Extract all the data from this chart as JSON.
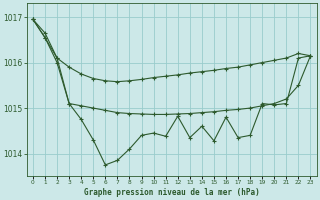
{
  "background_color": "#cce8e8",
  "plot_bg_color": "#cce8e8",
  "grid_color": "#99cccc",
  "line_color": "#2d5a2d",
  "xlabel": "Graphe pression niveau de la mer (hPa)",
  "ylim": [
    1013.5,
    1017.3
  ],
  "xlim": [
    -0.5,
    23.5
  ],
  "yticks": [
    1014,
    1015,
    1016,
    1017
  ],
  "xticks": [
    0,
    1,
    2,
    3,
    4,
    5,
    6,
    7,
    8,
    9,
    10,
    11,
    12,
    13,
    14,
    15,
    16,
    17,
    18,
    19,
    20,
    21,
    22,
    23
  ],
  "line_upper_x": [
    0,
    1,
    2,
    3,
    4,
    5,
    6,
    7,
    8,
    9,
    10,
    11,
    12,
    13,
    14,
    15,
    16,
    17,
    18,
    19,
    20,
    21,
    22,
    23
  ],
  "line_upper_y": [
    1016.95,
    1016.65,
    1016.1,
    1015.9,
    1015.75,
    1015.65,
    1015.6,
    1015.58,
    1015.6,
    1015.63,
    1015.67,
    1015.7,
    1015.73,
    1015.77,
    1015.8,
    1015.83,
    1015.87,
    1015.9,
    1015.95,
    1016.0,
    1016.05,
    1016.1,
    1016.2,
    1016.15
  ],
  "line_lower_x": [
    0,
    1,
    2,
    3,
    4,
    5,
    6,
    7,
    8,
    9,
    10,
    11,
    12,
    13,
    14,
    15,
    16,
    17,
    18,
    19,
    20,
    21,
    22,
    23
  ],
  "line_lower_y": [
    1016.95,
    1016.55,
    1016.0,
    1015.1,
    1015.05,
    1015.0,
    1014.95,
    1014.9,
    1014.88,
    1014.87,
    1014.86,
    1014.86,
    1014.87,
    1014.88,
    1014.9,
    1014.92,
    1014.95,
    1014.97,
    1015.0,
    1015.05,
    1015.1,
    1015.2,
    1015.5,
    1016.15
  ],
  "line_jagged_x": [
    0,
    1,
    2,
    3,
    4,
    5,
    6,
    7,
    8,
    9,
    10,
    11,
    12,
    13,
    14,
    15,
    16,
    17,
    18,
    19,
    20,
    21,
    22,
    23
  ],
  "line_jagged_y": [
    1016.95,
    1016.55,
    1016.1,
    1015.1,
    1014.75,
    1014.3,
    1013.75,
    1013.85,
    1014.1,
    1014.4,
    1014.45,
    1014.38,
    1014.82,
    1014.35,
    1014.6,
    1014.28,
    1014.8,
    1014.35,
    1014.4,
    1015.1,
    1015.07,
    1015.1,
    1016.1,
    1016.15
  ]
}
